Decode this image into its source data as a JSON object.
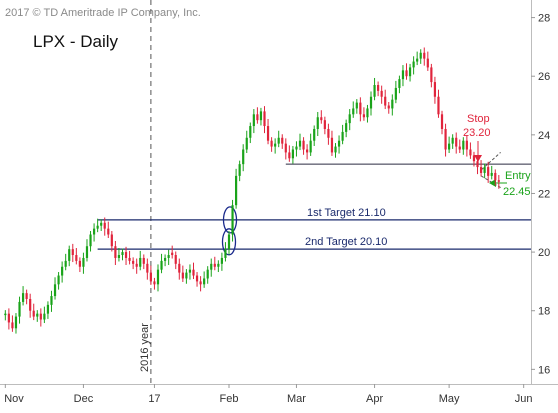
{
  "chart_data": {
    "type": "candlestick",
    "copyright": "2017 © TD Ameritrade IP Company, Inc.",
    "title": "LPX - Daily",
    "y_ticks": [
      16,
      18,
      20,
      22,
      24,
      26,
      28
    ],
    "ylim": [
      15.5,
      28.6
    ],
    "x_ticks": [
      {
        "label": "Nov",
        "x": 0
      },
      {
        "label": "Dec",
        "x": 22
      },
      {
        "label": "17",
        "x": 42
      },
      {
        "label": "Feb",
        "x": 63
      },
      {
        "label": "Mar",
        "x": 82
      },
      {
        "label": "Apr",
        "x": 104
      },
      {
        "label": "May",
        "x": 125
      },
      {
        "label": "Jun",
        "x": 146
      }
    ],
    "xlim": [
      -1.5,
      147.5
    ],
    "year_marker": {
      "label": "2016 year",
      "x": 41
    },
    "colors": {
      "up": "#1aa31a",
      "down": "#e0243c",
      "target_line": "#1a2a6c",
      "support_line": "#2a2a40",
      "stop": "#e0243c",
      "entry": "#1aa31a",
      "circle": "#1a2a8c"
    },
    "annotations": {
      "target1": {
        "label": "1st Target 21.10",
        "value": 21.1
      },
      "target2": {
        "label": "2nd Target 20.10",
        "value": 20.1
      },
      "stop": {
        "label": "Stop",
        "value_text": "23.20"
      },
      "entry": {
        "label": "Entry",
        "value_text": "22.45"
      },
      "support_level": 23.0
    },
    "closes": [
      17.9,
      17.6,
      17.4,
      17.8,
      18.3,
      18.6,
      18.4,
      18.0,
      17.8,
      17.9,
      17.7,
      17.9,
      18.2,
      18.5,
      18.9,
      19.2,
      19.5,
      19.7,
      20.1,
      19.9,
      19.7,
      19.5,
      19.8,
      20.2,
      20.6,
      20.8,
      20.9,
      21.0,
      20.8,
      20.6,
      20.2,
      19.8,
      19.9,
      20.0,
      19.8,
      19.7,
      19.6,
      19.5,
      19.8,
      19.6,
      19.3,
      19.0,
      18.9,
      19.4,
      19.7,
      19.8,
      19.9,
      19.9,
      19.6,
      19.3,
      19.1,
      19.3,
      19.4,
      19.2,
      19.0,
      18.9,
      19.1,
      19.4,
      19.6,
      19.5,
      19.6,
      19.8,
      20.1,
      20.6,
      21.6,
      22.6,
      23.0,
      23.5,
      23.9,
      24.3,
      24.7,
      24.5,
      24.8,
      24.3,
      23.8,
      23.6,
      23.7,
      23.9,
      23.7,
      23.4,
      23.2,
      23.5,
      23.6,
      23.8,
      23.5,
      23.4,
      23.8,
      24.2,
      24.6,
      24.5,
      24.2,
      23.9,
      23.4,
      23.6,
      23.8,
      24.1,
      24.4,
      24.7,
      24.9,
      25.1,
      24.7,
      24.6,
      24.9,
      25.3,
      25.7,
      25.5,
      25.3,
      25.0,
      24.9,
      25.2,
      25.6,
      25.9,
      26.2,
      26.0,
      26.3,
      26.5,
      26.6,
      26.8,
      26.6,
      26.3,
      25.8,
      25.3,
      24.7,
      24.2,
      23.5,
      23.7,
      23.9,
      23.6,
      23.5,
      23.8,
      23.5,
      23.3,
      23.1,
      22.9,
      22.7,
      22.9,
      22.6,
      22.7,
      22.45,
      22.4
    ]
  }
}
